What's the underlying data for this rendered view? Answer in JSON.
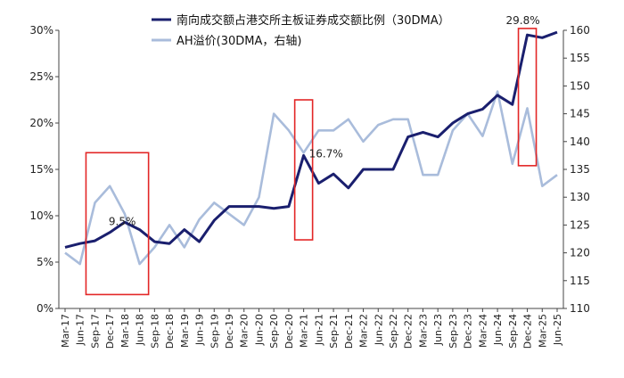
{
  "chart_data": {
    "type": "line",
    "x_labels": [
      "Mar-17",
      "Jun-17",
      "Sep-17",
      "Dec-17",
      "Mar-18",
      "Jun-18",
      "Sep-18",
      "Dec-18",
      "Mar-19",
      "Jun-19",
      "Sep-19",
      "Dec-19",
      "Mar-20",
      "Jun-20",
      "Sep-20",
      "Dec-20",
      "Mar-21",
      "Jun-21",
      "Sep-21",
      "Dec-21",
      "Mar-22",
      "Jun-22",
      "Sep-22",
      "Dec-22",
      "Mar-23",
      "Jun-23",
      "Sep-23",
      "Dec-23",
      "Mar-24",
      "Jun-24",
      "Sep-24",
      "Dec-24",
      "Mar-25",
      "Jun-25"
    ],
    "y_left": {
      "min": 0,
      "max": 30,
      "step": 5,
      "ticks": [
        "0%",
        "5%",
        "10%",
        "15%",
        "20%",
        "25%",
        "30%"
      ]
    },
    "y_right": {
      "min": 110,
      "max": 160,
      "step": 5,
      "ticks": [
        "110",
        "115",
        "120",
        "125",
        "130",
        "135",
        "140",
        "145",
        "150",
        "155",
        "160"
      ]
    },
    "series": [
      {
        "name": "南向成交额占港交所主板证券成交额比例（30DMA）",
        "axis": "left",
        "color": "#1a1f6e",
        "values": [
          6.6,
          7.0,
          7.3,
          8.2,
          9.3,
          8.5,
          7.2,
          7.0,
          8.5,
          7.2,
          9.5,
          11.0,
          11.0,
          11.0,
          10.8,
          11.0,
          16.5,
          13.5,
          14.5,
          13.0,
          15.0,
          15.0,
          15.0,
          18.5,
          19.0,
          18.5,
          20.0,
          21.0,
          21.5,
          23.0,
          22.0,
          29.5,
          29.2,
          29.8
        ]
      },
      {
        "name": "AH溢价(30DMA，右轴)",
        "axis": "right",
        "color": "#a9bcdb",
        "values": [
          120,
          118,
          129,
          132,
          127,
          118,
          121,
          125,
          121,
          126,
          129,
          127,
          125,
          130,
          145,
          142,
          138,
          142,
          142,
          144,
          140,
          143,
          144,
          144,
          134,
          134,
          142,
          145,
          141,
          149,
          136,
          146,
          132,
          134
        ]
      }
    ],
    "annotations": [
      {
        "label": "9.5%"
      },
      {
        "label": "16.7%"
      },
      {
        "label": "29.8%"
      }
    ],
    "grid": false,
    "legend": "top"
  }
}
